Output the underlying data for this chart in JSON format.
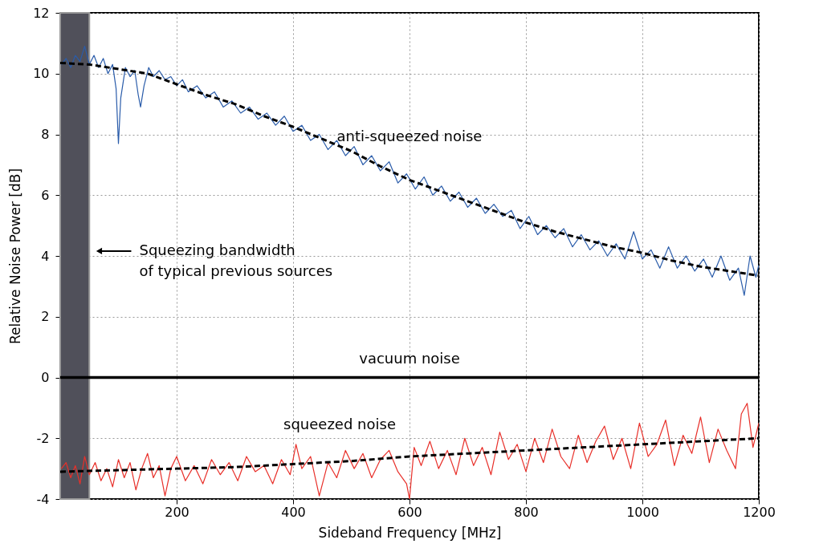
{
  "chart_data": {
    "type": "line",
    "xlabel": "Sideband Frequency [MHz]",
    "ylabel": "Relative Noise Power [dB]",
    "xlim": [
      0,
      1200
    ],
    "xticks": [
      200,
      400,
      600,
      800,
      1000,
      1200
    ],
    "ylim": [
      -4,
      12
    ],
    "yticks": [
      -4,
      -2,
      0,
      2,
      4,
      6,
      8,
      10,
      12
    ],
    "grid": true,
    "legend": false,
    "marker": "none",
    "series": [
      {
        "name": "anti-squeezed noise",
        "color": "#2a5caa",
        "line_style": "solid",
        "x": [
          2,
          10,
          18,
          26,
          34,
          42,
          50,
          58,
          66,
          74,
          82,
          90,
          96,
          100,
          104,
          112,
          120,
          128,
          134,
          138,
          144,
          152,
          160,
          170,
          180,
          190,
          200,
          210,
          220,
          235,
          250,
          265,
          280,
          295,
          310,
          325,
          340,
          355,
          370,
          385,
          400,
          415,
          430,
          445,
          460,
          475,
          490,
          505,
          520,
          535,
          550,
          565,
          580,
          595,
          610,
          625,
          640,
          655,
          670,
          685,
          700,
          715,
          730,
          745,
          760,
          775,
          790,
          805,
          820,
          835,
          850,
          865,
          880,
          895,
          910,
          925,
          940,
          955,
          970,
          985,
          1000,
          1015,
          1030,
          1045,
          1060,
          1075,
          1090,
          1105,
          1120,
          1135,
          1150,
          1165,
          1175,
          1185,
          1195,
          1200
        ],
        "values": [
          10.3,
          10.5,
          10.2,
          10.6,
          10.4,
          10.9,
          10.3,
          10.6,
          10.2,
          10.5,
          10.0,
          10.3,
          9.5,
          7.7,
          9.2,
          10.2,
          9.9,
          10.1,
          9.3,
          8.9,
          9.6,
          10.2,
          9.9,
          10.1,
          9.8,
          9.9,
          9.6,
          9.8,
          9.4,
          9.6,
          9.2,
          9.4,
          8.9,
          9.1,
          8.7,
          8.9,
          8.5,
          8.7,
          8.3,
          8.6,
          8.1,
          8.3,
          7.8,
          8.0,
          7.5,
          7.8,
          7.3,
          7.6,
          7.0,
          7.3,
          6.8,
          7.1,
          6.4,
          6.7,
          6.2,
          6.6,
          6.0,
          6.3,
          5.8,
          6.1,
          5.6,
          5.9,
          5.4,
          5.7,
          5.3,
          5.5,
          4.9,
          5.3,
          4.7,
          5.0,
          4.6,
          4.9,
          4.3,
          4.7,
          4.2,
          4.5,
          4.0,
          4.4,
          3.9,
          4.8,
          3.9,
          4.2,
          3.6,
          4.3,
          3.6,
          4.0,
          3.5,
          3.9,
          3.3,
          4.0,
          3.2,
          3.6,
          2.7,
          4.0,
          3.3,
          3.7
        ]
      },
      {
        "name": "squeezed noise",
        "color": "#e8302a",
        "line_style": "solid",
        "x": [
          2,
          10,
          18,
          26,
          34,
          42,
          50,
          60,
          70,
          80,
          90,
          100,
          110,
          120,
          130,
          140,
          150,
          160,
          170,
          180,
          190,
          200,
          215,
          230,
          245,
          260,
          275,
          290,
          305,
          320,
          335,
          350,
          365,
          380,
          395,
          405,
          415,
          430,
          445,
          460,
          475,
          490,
          505,
          520,
          535,
          550,
          565,
          580,
          595,
          600,
          608,
          620,
          635,
          650,
          665,
          680,
          695,
          710,
          725,
          740,
          755,
          770,
          785,
          800,
          815,
          830,
          845,
          860,
          875,
          890,
          905,
          920,
          935,
          950,
          965,
          980,
          995,
          1010,
          1025,
          1040,
          1055,
          1070,
          1085,
          1100,
          1115,
          1130,
          1145,
          1160,
          1170,
          1180,
          1190,
          1200
        ],
        "values": [
          -3.0,
          -2.8,
          -3.3,
          -2.9,
          -3.5,
          -2.6,
          -3.2,
          -2.8,
          -3.4,
          -3.0,
          -3.6,
          -2.7,
          -3.3,
          -2.8,
          -3.7,
          -3.0,
          -2.5,
          -3.3,
          -2.9,
          -3.9,
          -3.0,
          -2.6,
          -3.4,
          -2.9,
          -3.5,
          -2.7,
          -3.2,
          -2.8,
          -3.4,
          -2.6,
          -3.1,
          -2.9,
          -3.5,
          -2.7,
          -3.2,
          -2.2,
          -3.0,
          -2.6,
          -3.9,
          -2.8,
          -3.3,
          -2.4,
          -3.0,
          -2.5,
          -3.3,
          -2.7,
          -2.4,
          -3.1,
          -3.5,
          -4.0,
          -2.3,
          -2.9,
          -2.1,
          -3.0,
          -2.4,
          -3.2,
          -2.0,
          -2.9,
          -2.3,
          -3.2,
          -1.8,
          -2.7,
          -2.2,
          -3.1,
          -2.0,
          -2.8,
          -1.7,
          -2.6,
          -3.0,
          -1.9,
          -2.8,
          -2.1,
          -1.6,
          -2.7,
          -2.0,
          -3.0,
          -1.5,
          -2.6,
          -2.2,
          -1.4,
          -2.9,
          -1.9,
          -2.5,
          -1.3,
          -2.8,
          -1.7,
          -2.4,
          -3.0,
          -1.2,
          -0.85,
          -2.3,
          -1.5
        ]
      },
      {
        "color": "#000000",
        "line_style": "dashed",
        "x": [
          0,
          50,
          100,
          150,
          200,
          250,
          300,
          350,
          400,
          450,
          500,
          550,
          600,
          650,
          700,
          750,
          800,
          850,
          900,
          950,
          1000,
          1050,
          1100,
          1150,
          1200
        ],
        "values": [
          10.35,
          10.3,
          10.15,
          10.0,
          9.65,
          9.3,
          9.0,
          8.6,
          8.25,
          7.85,
          7.45,
          6.95,
          6.5,
          6.15,
          5.8,
          5.45,
          5.1,
          4.8,
          4.55,
          4.3,
          4.1,
          3.85,
          3.65,
          3.5,
          3.35
        ]
      },
      {
        "color": "#000000",
        "line_style": "dashed",
        "x": [
          0,
          100,
          200,
          300,
          400,
          500,
          600,
          700,
          800,
          900,
          1000,
          1100,
          1200
        ],
        "values": [
          -3.1,
          -3.05,
          -3.0,
          -2.95,
          -2.85,
          -2.75,
          -2.6,
          -2.5,
          -2.4,
          -2.3,
          -2.2,
          -2.1,
          -2.0
        ]
      }
    ],
    "ref_lines": [
      {
        "axis": "y",
        "value": 0,
        "label": "vacuum noise",
        "color": "#000000",
        "line_style": "solid"
      }
    ],
    "bands": [
      {
        "axis": "x",
        "from": 0,
        "to": 50,
        "color": "#50505a"
      }
    ],
    "annotations": [
      "Squeezing bandwidth\nof typical previous sources"
    ]
  }
}
